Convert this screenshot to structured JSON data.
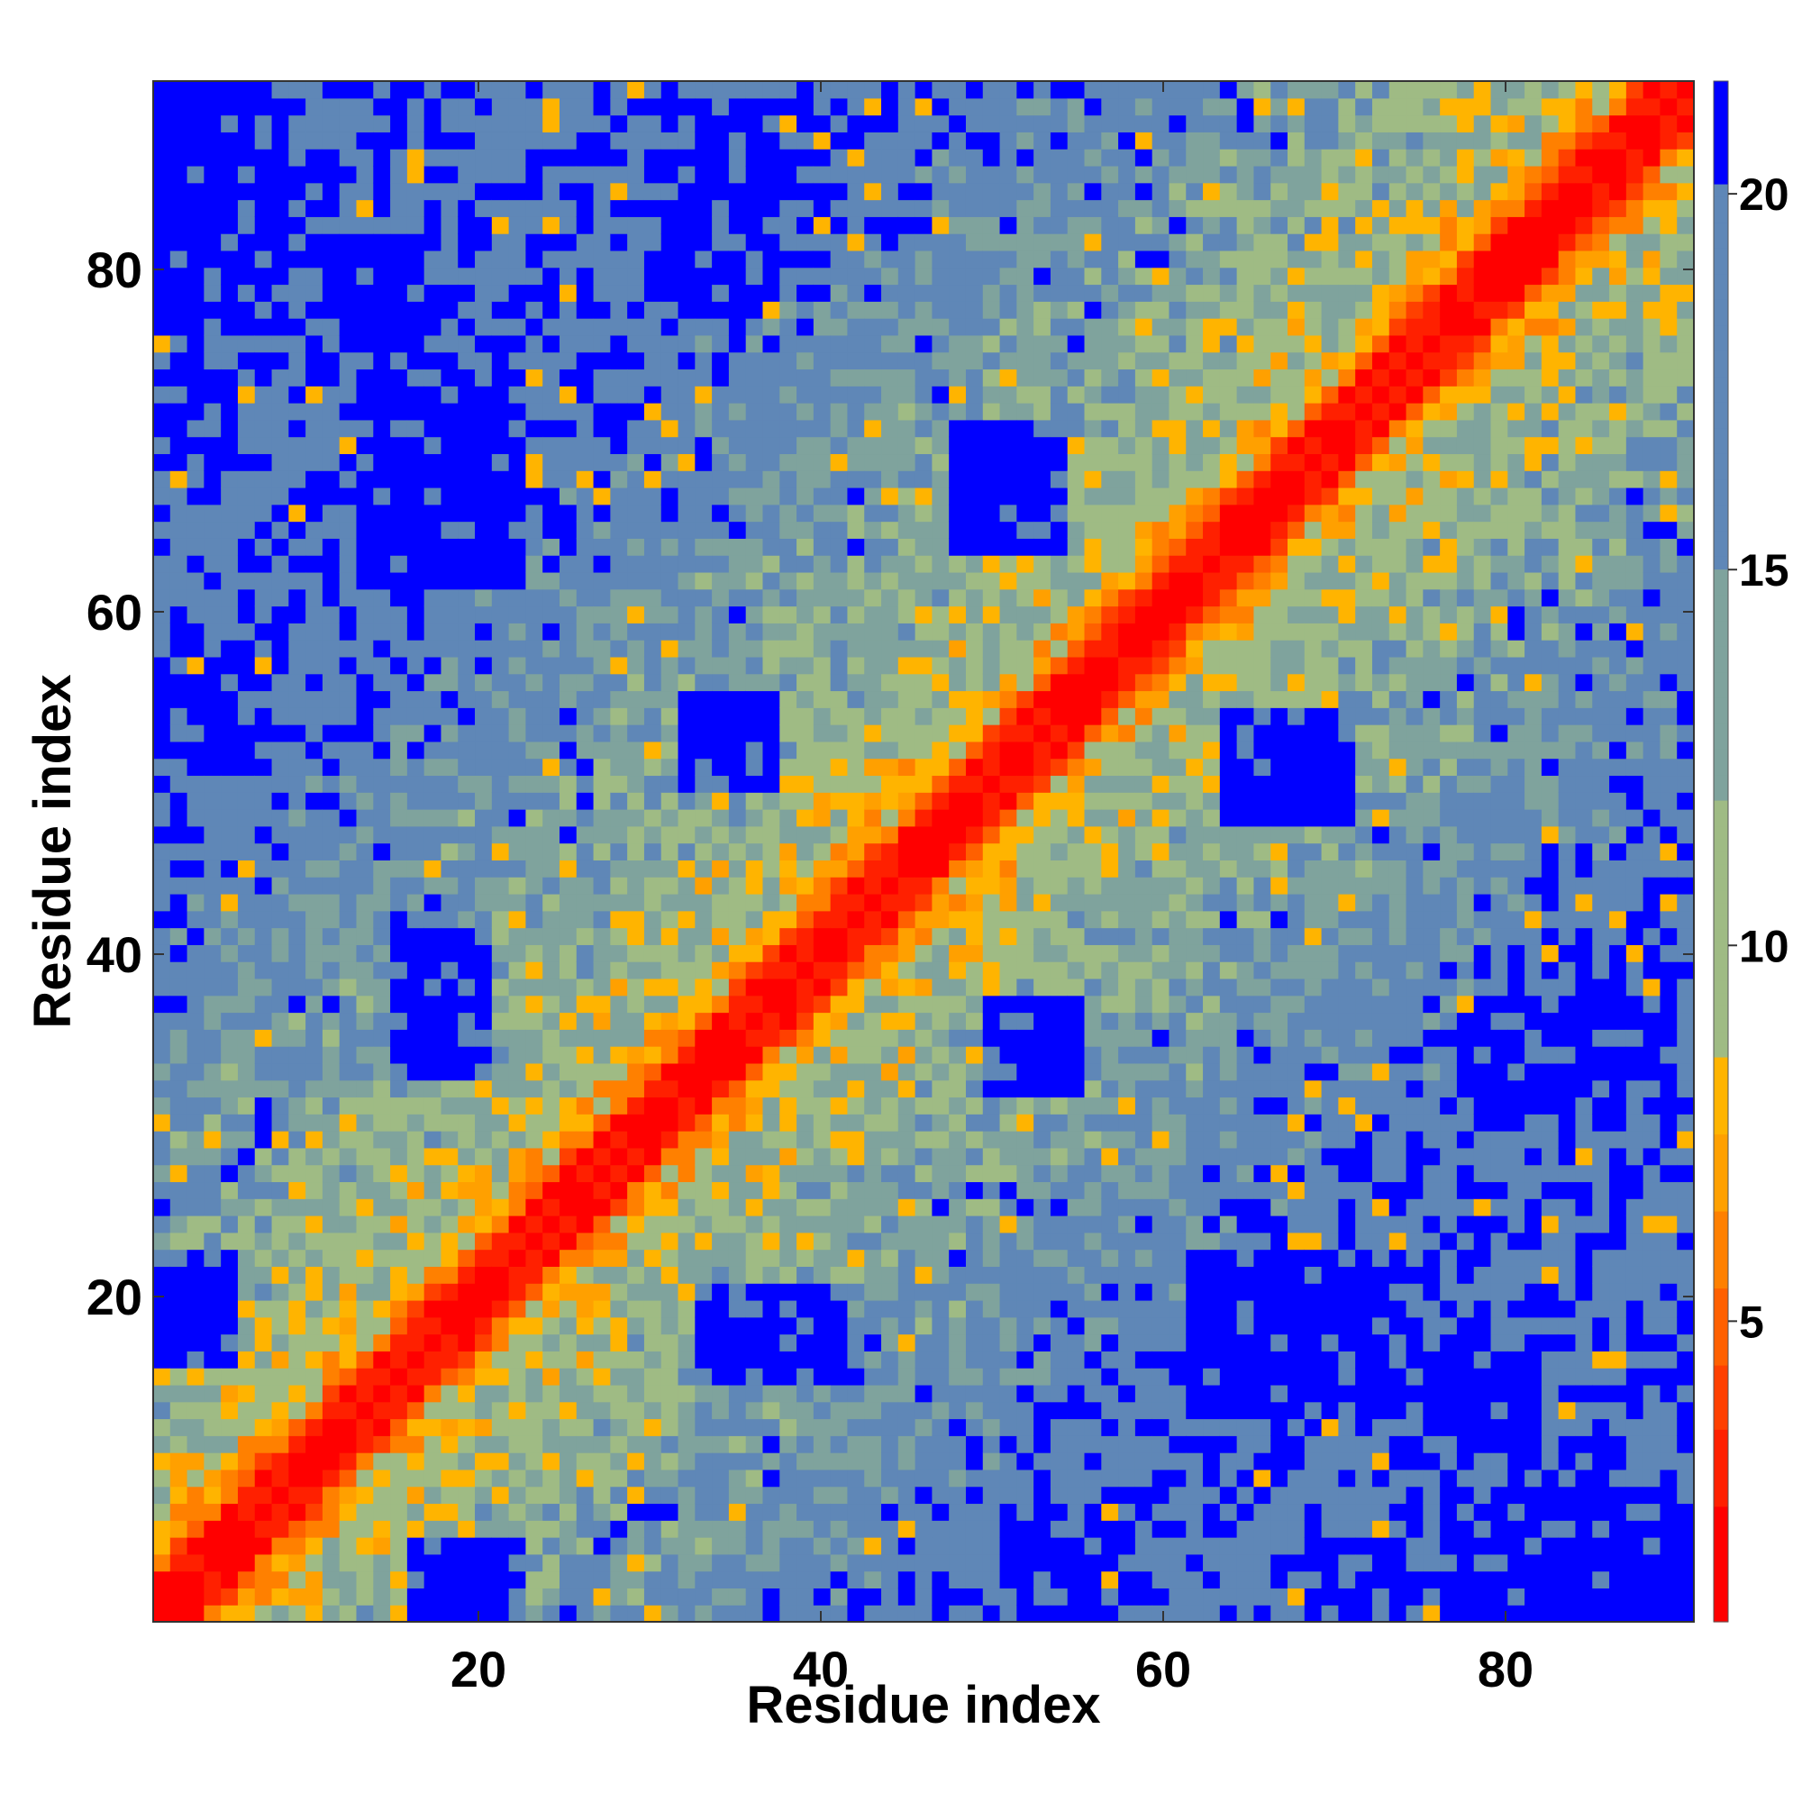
{
  "chart_data": {
    "type": "heatmap",
    "title": "",
    "xlabel": "Residue index",
    "ylabel": "Residue index",
    "n_residues": 91,
    "xlim": [
      1,
      91
    ],
    "ylim": [
      1,
      91
    ],
    "x_ticks": [
      20,
      40,
      60,
      80
    ],
    "y_ticks": [
      20,
      40,
      60,
      80
    ],
    "colorbar": {
      "ticks": [
        5,
        10,
        15,
        20
      ],
      "range": [
        1,
        21.5
      ],
      "levels": [
        {
          "max": 2.5,
          "color": "#ff0000"
        },
        {
          "max": 3.5,
          "color": "#ff2000"
        },
        {
          "max": 4.5,
          "color": "#ff4000"
        },
        {
          "max": 5.5,
          "color": "#ff6000"
        },
        {
          "max": 6.5,
          "color": "#ff8000"
        },
        {
          "max": 7.5,
          "color": "#ffa000"
        },
        {
          "max": 8.5,
          "color": "#ffb400"
        },
        {
          "max": 12,
          "color": "#9fbb84"
        },
        {
          "max": 15,
          "color": "#7fa39d"
        },
        {
          "max": 20.2,
          "color": "#5f87b7"
        },
        {
          "max": 99,
          "color": "#0000ff"
        }
      ]
    },
    "description_of_values": "Symmetric residue-residue distance map (Angstrom). Diagonal band ~0-4 (red), near-diagonal 5-8 (orange), mid-range 9-15 (green/gray-blue), far >20 (blue). Blue domains around x=15-25 with y=65-90, x=30-36 with y=78-90, x=65-75 with y=10-25, x=80-90 with y=1-35, etc.",
    "blue_blocks": [
      {
        "x": [
          1,
          7
        ],
        "y": [
          77,
          91
        ]
      },
      {
        "x": [
          14,
          20
        ],
        "y": [
          62,
          74
        ]
      },
      {
        "x": [
          31,
          36
        ],
        "y": [
          78,
          90
        ]
      },
      {
        "x": [
          48,
          54
        ],
        "y": [
          64,
          70
        ]
      },
      {
        "x": [
          32,
          37
        ],
        "y": [
          50,
          54
        ]
      },
      {
        "x": [
          1,
          5
        ],
        "y": [
          16,
          22
        ]
      },
      {
        "x": [
          15,
          20
        ],
        "y": [
          33,
          40
        ]
      },
      {
        "x": [
          16,
          22
        ],
        "y": [
          1,
          4
        ]
      },
      {
        "x": [
          33,
          41
        ],
        "y": [
          15,
          20
        ]
      },
      {
        "x": [
          50,
          55
        ],
        "y": [
          32,
          37
        ]
      },
      {
        "x": [
          62,
          74
        ],
        "y": [
          13,
          22
        ]
      },
      {
        "x": [
          67,
          71
        ],
        "y": [
          48,
          54
        ]
      },
      {
        "x": [
          79,
          87
        ],
        "y": [
          32,
          37
        ]
      },
      {
        "x": [
          80,
          91
        ],
        "y": [
          1,
          8
        ]
      },
      {
        "x": [
          51,
          56
        ],
        "y": [
          1,
          6
        ]
      },
      {
        "x": [
          69,
          74
        ],
        "y": [
          1,
          5
        ]
      },
      {
        "x": [
          76,
          82
        ],
        "y": [
          11,
          17
        ]
      }
    ]
  }
}
